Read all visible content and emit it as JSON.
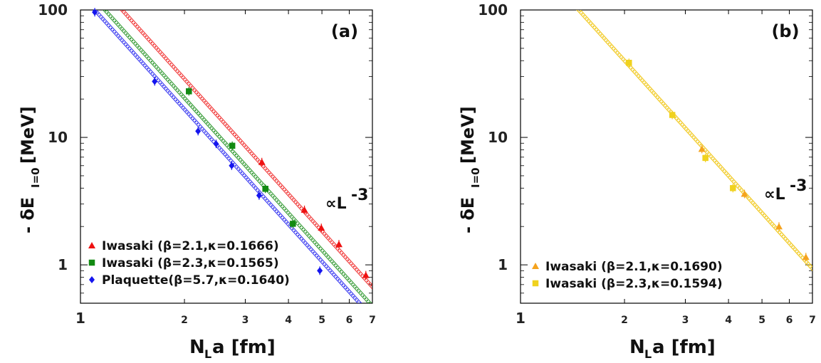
{
  "chart_data": [
    {
      "type": "scatter",
      "panel_label": "(a)",
      "xlabel": "Nₗa [fm]",
      "xlabel_main": "N",
      "xlabel_sub": "L",
      "xlabel_rest": "a [fm]",
      "ylabel_pre": "- δE",
      "ylabel_sub": "I=0",
      "ylabel_post": " [MeV]",
      "xscale": "log",
      "yscale": "log",
      "xlim": [
        1,
        7
      ],
      "ylim": [
        0.5,
        100
      ],
      "x_ticks": [
        "1",
        "2",
        "3",
        "4",
        "5",
        "6",
        "7"
      ],
      "y_ticks": [
        "1",
        "10",
        "100"
      ],
      "annotation": "∝L",
      "annotation_sup": "-3",
      "legend_position": "bottom-left",
      "series": [
        {
          "name": "Iwasaki (β=2.1,κ=0.1666)",
          "marker": "triangle",
          "color": "#ee1111",
          "x": [
            3.35,
            4.45,
            4.98,
            5.6,
            6.7
          ],
          "y": [
            6.4,
            2.7,
            1.95,
            1.45,
            0.83
          ],
          "fit_coeff": 230
        },
        {
          "name": "Iwasaki (β=2.3,κ=0.1565)",
          "marker": "square",
          "color": "#128a12",
          "x": [
            2.06,
            2.75,
            3.43,
            4.12
          ],
          "y": [
            23,
            8.6,
            3.95,
            2.1
          ],
          "fit_coeff": 163
        },
        {
          "name": "Plaquette(β=5.7,κ=0.1640)",
          "marker": "diamond",
          "color": "#1515ee",
          "x": [
            1.1,
            1.64,
            2.19,
            2.47,
            2.74,
            3.29,
            4.93
          ],
          "y": [
            96,
            27.5,
            11.2,
            8.9,
            6.0,
            3.5,
            0.9
          ],
          "fit_coeff": 133
        }
      ]
    },
    {
      "type": "scatter",
      "panel_label": "(b)",
      "xlabel": "Nₗa [fm]",
      "xlabel_main": "N",
      "xlabel_sub": "L",
      "xlabel_rest": "a [fm]",
      "ylabel_pre": "- δE",
      "ylabel_sub": "I=0",
      "ylabel_post": " [MeV]",
      "xscale": "log",
      "yscale": "log",
      "xlim": [
        1,
        7
      ],
      "ylim": [
        0.5,
        100
      ],
      "x_ticks": [
        "1",
        "2",
        "3",
        "4",
        "5",
        "6",
        "7"
      ],
      "y_ticks": [
        "1",
        "10",
        "100"
      ],
      "annotation": "∝L",
      "annotation_sup": "-3",
      "legend_position": "bottom-left",
      "series": [
        {
          "name": "Iwasaki (β=2.1,κ=0.1690)",
          "marker": "triangle",
          "color": "#f5a31e",
          "x": [
            3.35,
            4.45,
            5.6,
            6.7
          ],
          "y": [
            8.1,
            3.6,
            2.0,
            1.15
          ],
          "fit_coeff": 320
        },
        {
          "name": "Iwasaki (β=2.3,κ=0.1594)",
          "marker": "square",
          "color": "#f0d21e",
          "x": [
            2.06,
            2.75,
            3.43,
            4.12
          ],
          "y": [
            38.5,
            15.0,
            6.9,
            4.0
          ],
          "fit_coeff": 320
        }
      ]
    }
  ]
}
